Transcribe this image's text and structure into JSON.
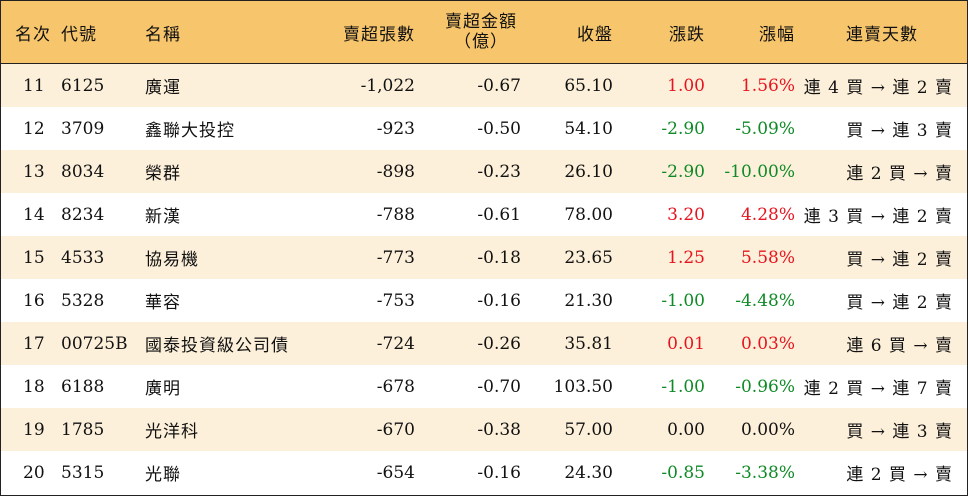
{
  "headers": {
    "rank": "名次",
    "code": "代號",
    "name": "名稱",
    "net_sell_lots": "賣超張數",
    "net_sell_amount_line1": "賣超金額",
    "net_sell_amount_line2": "（億）",
    "close": "收盤",
    "change": "漲跌",
    "change_pct": "漲幅",
    "consecutive_days": "連賣天數"
  },
  "colors": {
    "header_bg": "#f7c56b",
    "stripe_bg": "#fdf0da",
    "up": "#e5141e",
    "down": "#0f8a26"
  },
  "rows": [
    {
      "rank": "11",
      "code": "6125",
      "name": "廣運",
      "lots": "-1,022",
      "amount": "-0.67",
      "close": "65.10",
      "change": "1.00",
      "pct": "1.56%",
      "days": "連 4 買 → 連 2 賣",
      "trend": "up"
    },
    {
      "rank": "12",
      "code": "3709",
      "name": "鑫聯大投控",
      "lots": "-923",
      "amount": "-0.50",
      "close": "54.10",
      "change": "-2.90",
      "pct": "-5.09%",
      "days": "買 → 連 3 賣",
      "trend": "down"
    },
    {
      "rank": "13",
      "code": "8034",
      "name": "榮群",
      "lots": "-898",
      "amount": "-0.23",
      "close": "26.10",
      "change": "-2.90",
      "pct": "-10.00%",
      "days": "連 2 買 → 賣",
      "trend": "down"
    },
    {
      "rank": "14",
      "code": "8234",
      "name": "新漢",
      "lots": "-788",
      "amount": "-0.61",
      "close": "78.00",
      "change": "3.20",
      "pct": "4.28%",
      "days": "連 3 買 → 連 2 賣",
      "trend": "up"
    },
    {
      "rank": "15",
      "code": "4533",
      "name": "協易機",
      "lots": "-773",
      "amount": "-0.18",
      "close": "23.65",
      "change": "1.25",
      "pct": "5.58%",
      "days": "買 → 連 2 賣",
      "trend": "up"
    },
    {
      "rank": "16",
      "code": "5328",
      "name": "華容",
      "lots": "-753",
      "amount": "-0.16",
      "close": "21.30",
      "change": "-1.00",
      "pct": "-4.48%",
      "days": "買 → 連 2 賣",
      "trend": "down"
    },
    {
      "rank": "17",
      "code": "00725B",
      "name": "國泰投資級公司債",
      "lots": "-724",
      "amount": "-0.26",
      "close": "35.81",
      "change": "0.01",
      "pct": "0.03%",
      "days": "連 6 買 → 賣",
      "trend": "up"
    },
    {
      "rank": "18",
      "code": "6188",
      "name": "廣明",
      "lots": "-678",
      "amount": "-0.70",
      "close": "103.50",
      "change": "-1.00",
      "pct": "-0.96%",
      "days": "連 2 買 → 連 7 賣",
      "trend": "down"
    },
    {
      "rank": "19",
      "code": "1785",
      "name": "光洋科",
      "lots": "-670",
      "amount": "-0.38",
      "close": "57.00",
      "change": "0.00",
      "pct": "0.00%",
      "days": "買 → 連 3 賣",
      "trend": "flat"
    },
    {
      "rank": "20",
      "code": "5315",
      "name": "光聯",
      "lots": "-654",
      "amount": "-0.16",
      "close": "24.30",
      "change": "-0.85",
      "pct": "-3.38%",
      "days": "連 2 買 → 賣",
      "trend": "down"
    }
  ]
}
